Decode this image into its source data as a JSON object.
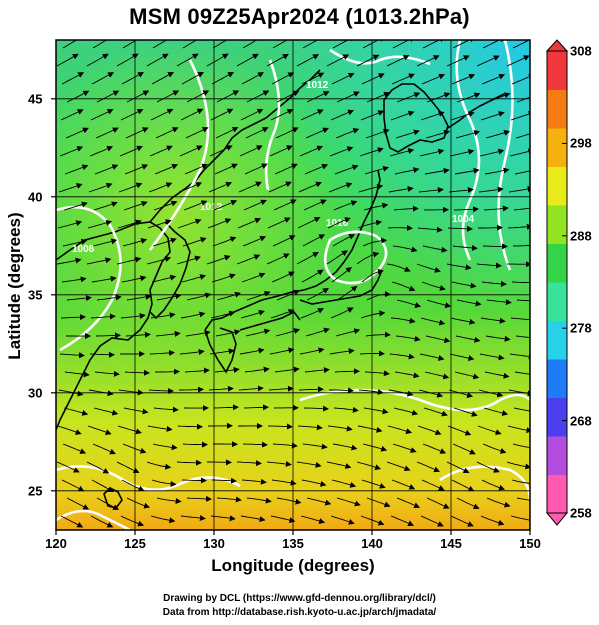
{
  "title": "MSM 09Z25Apr2024 (1013.2hPa)",
  "map": {
    "xlabel": "Longitude (degrees)",
    "ylabel": "Latitude  (degrees)",
    "lon_range": [
      120,
      150
    ],
    "lat_range": [
      23,
      48
    ],
    "lon_ticks": [
      "120",
      "125",
      "130",
      "135",
      "140",
      "145",
      "150"
    ],
    "lat_ticks": [
      "25",
      "30",
      "35",
      "40",
      "45"
    ],
    "lon_tick_values": [
      120,
      125,
      130,
      135,
      140,
      145,
      150
    ],
    "lat_tick_values": [
      25,
      30,
      35,
      40,
      45
    ],
    "grid": true,
    "contour_labels": [
      "1008",
      "1012",
      "1016",
      "1004",
      "1012"
    ]
  },
  "colorbar": {
    "min": 258,
    "max": 308,
    "ticks": [
      "308",
      "298",
      "288",
      "278",
      "268",
      "258"
    ],
    "tick_values": [
      308,
      298,
      288,
      278,
      268,
      258
    ],
    "colors": [
      "#ff5ab0",
      "#b34de0",
      "#4b3ff0",
      "#1f7cf7",
      "#27d1ea",
      "#38e29a",
      "#35d448",
      "#92e322",
      "#e8ea1a",
      "#f5b10e",
      "#f57b12",
      "#f0383c"
    ]
  },
  "credit": {
    "line1": "Drawing by DCL (https://www.gfd-dennou.org/library/dcl/)",
    "line2": "Data from http://database.rish.kyoto-u.ac.jp/arch/jmadata/"
  }
}
